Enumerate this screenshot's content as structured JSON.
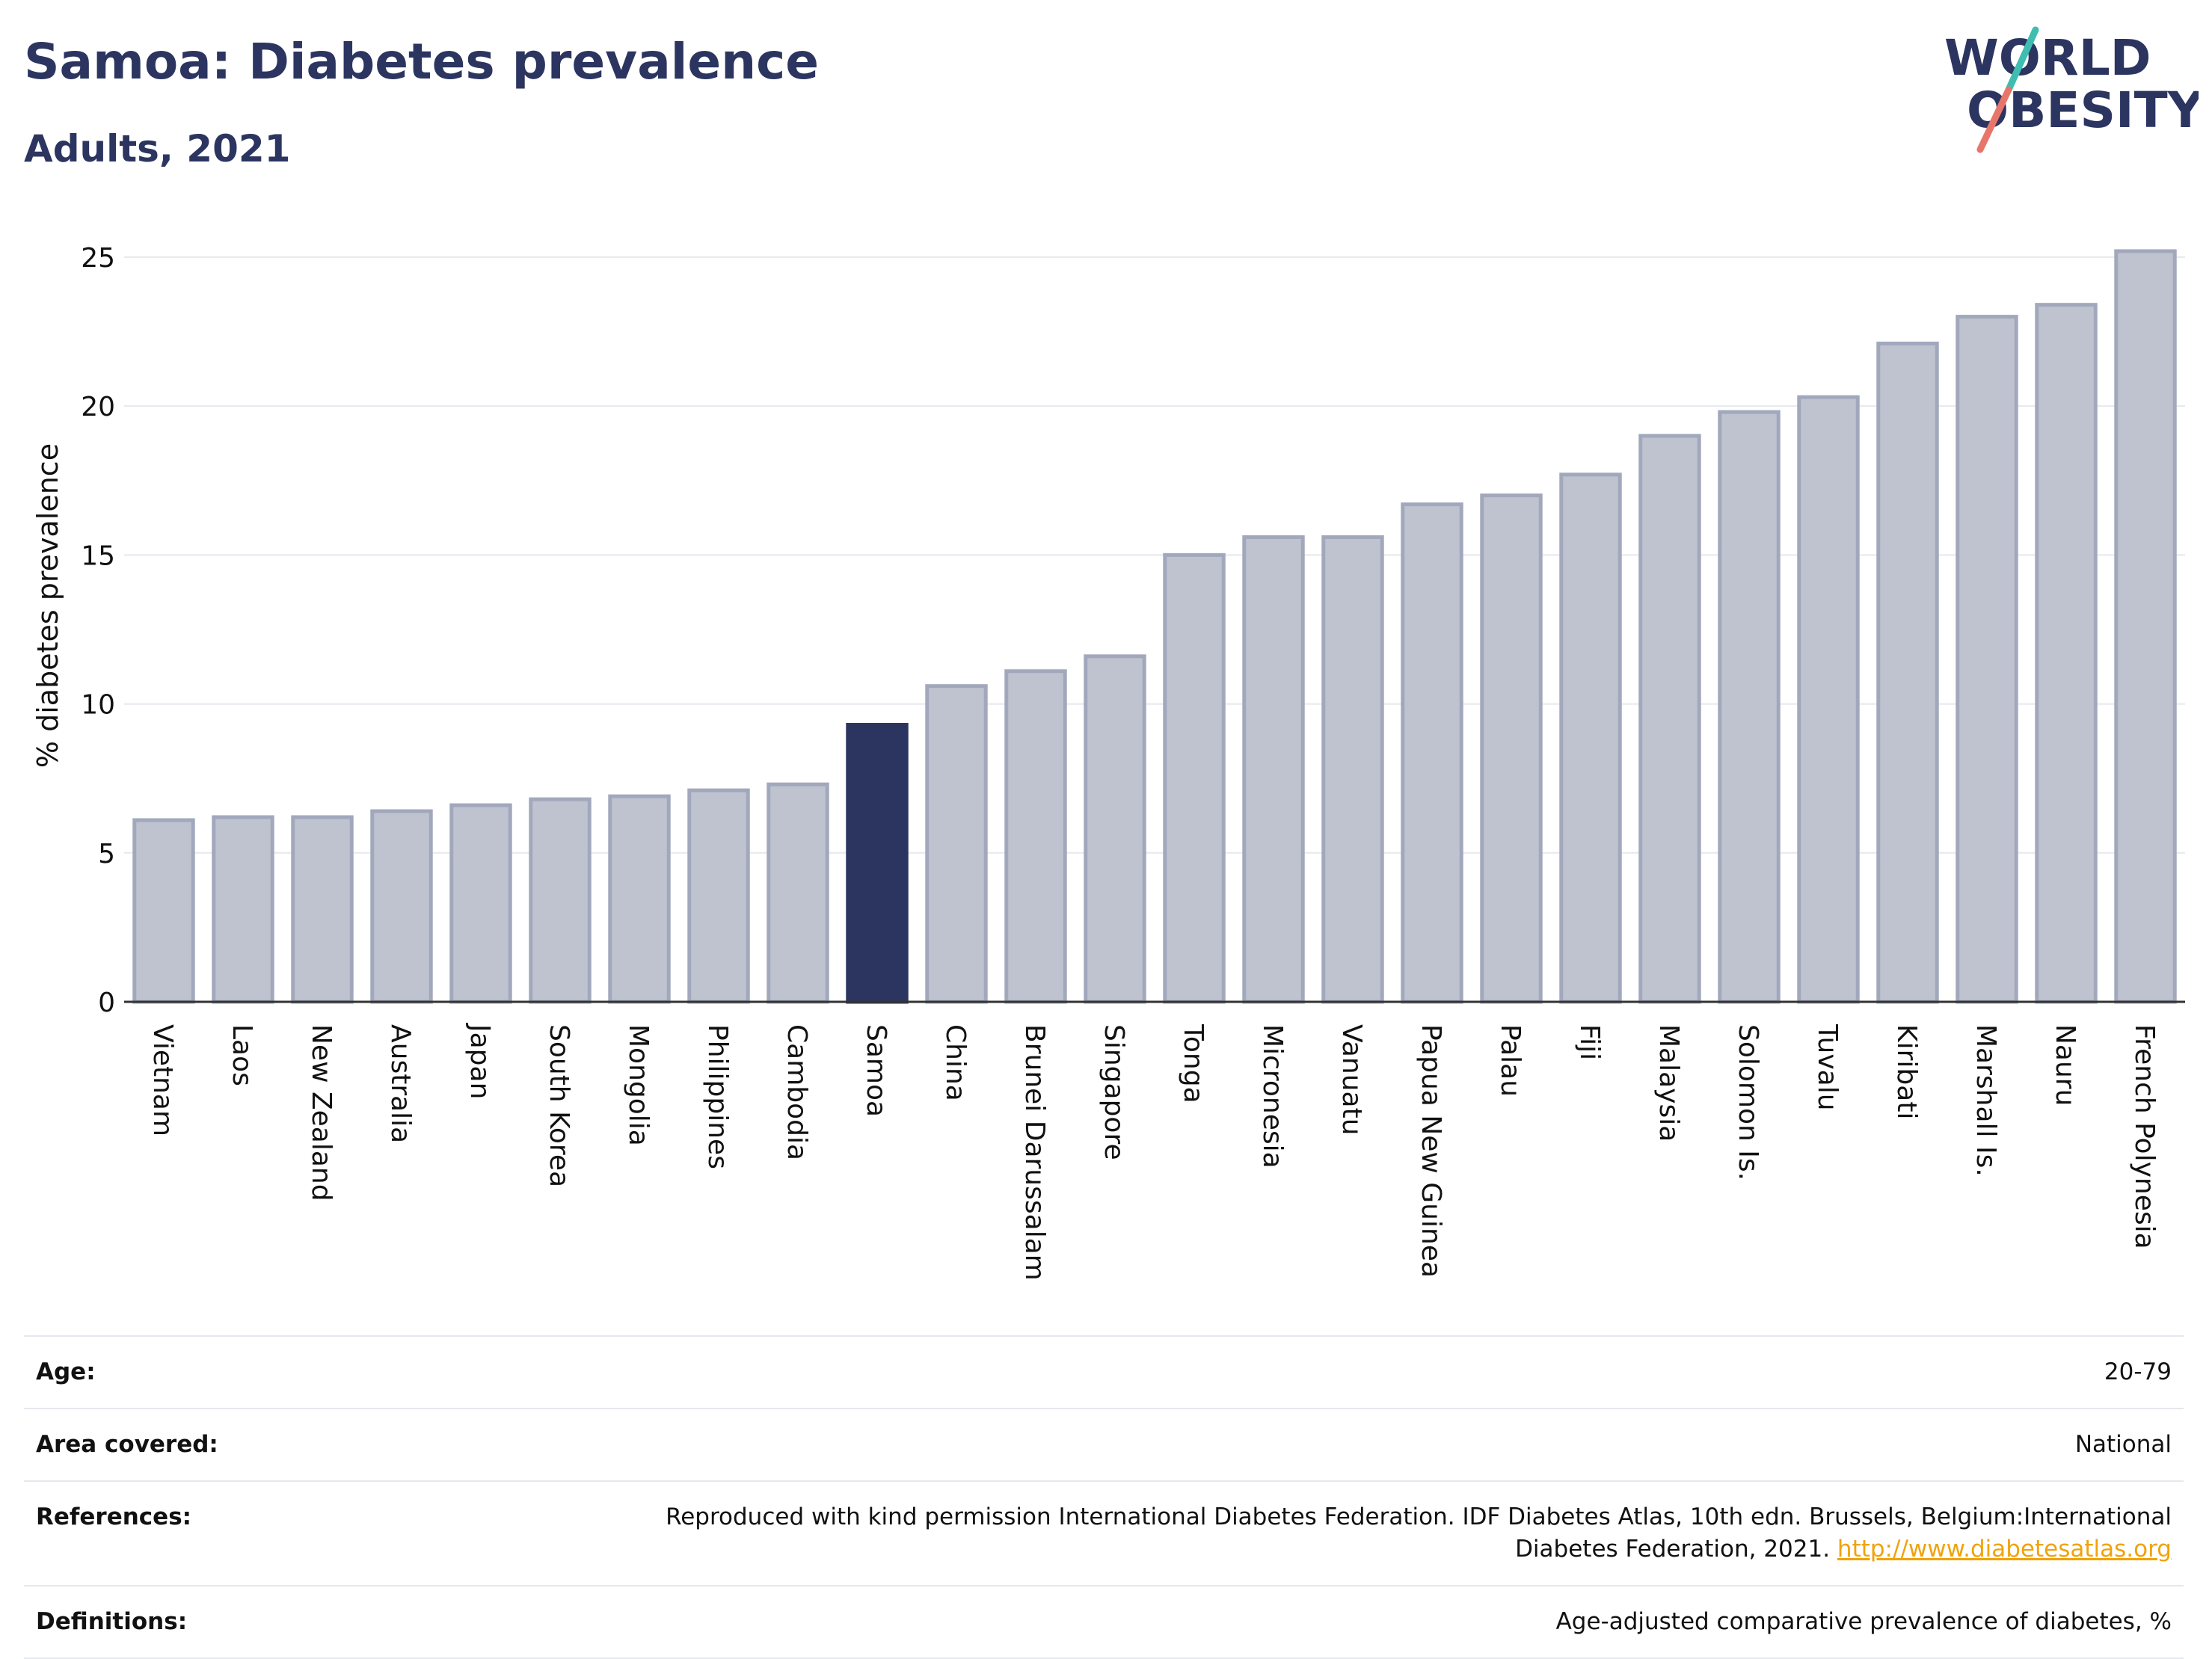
{
  "header": {
    "title": "Samoa: Diabetes prevalence",
    "subtitle": "Adults, 2021"
  },
  "logo": {
    "line1": "WORLD",
    "line2": "OBESITY"
  },
  "chart_data": {
    "type": "bar",
    "title": "Samoa: Diabetes prevalence",
    "subtitle": "Adults, 2021",
    "xlabel": "",
    "ylabel": "% diabetes prevalence",
    "ylim": [
      0,
      25
    ],
    "yticks": [
      0,
      5,
      10,
      15,
      20,
      25
    ],
    "grid": true,
    "highlight": "Samoa",
    "categories": [
      "Vietnam",
      "Laos",
      "New Zealand",
      "Australia",
      "Japan",
      "South Korea",
      "Mongolia",
      "Philippines",
      "Cambodia",
      "Samoa",
      "China",
      "Brunei Darussalam",
      "Singapore",
      "Tonga",
      "Micronesia",
      "Vanuatu",
      "Papua New Guinea",
      "Palau",
      "Fiji",
      "Malaysia",
      "Solomon Is.",
      "Tuvalu",
      "Kiribati",
      "Marshall Is.",
      "Nauru",
      "French Polynesia"
    ],
    "values": [
      6.1,
      6.2,
      6.2,
      6.4,
      6.6,
      6.8,
      6.9,
      7.1,
      7.3,
      9.3,
      10.6,
      11.1,
      11.6,
      15.0,
      15.6,
      15.6,
      16.7,
      17.0,
      17.7,
      19.0,
      19.8,
      20.3,
      22.1,
      23.0,
      23.4,
      25.2
    ]
  },
  "colors": {
    "title": "#2b3560",
    "bar": "#bfc3d0",
    "bar_border": "#a2a8bc",
    "bar_highlight": "#2b3560",
    "axis": "#333333",
    "grid": "#e6e8ef",
    "link": "#f0a30a",
    "logo_teal": "#3fbdb1",
    "logo_coral": "#e8756a"
  },
  "info": {
    "age_label": "Age:",
    "age_value": "20-79",
    "area_label": "Area covered:",
    "area_value": "National",
    "ref_label": "References:",
    "ref_text": "Reproduced with kind permission International Diabetes Federation.  IDF Diabetes Atlas, 10th edn. Brussels, Belgium:International Diabetes Federation, 2021.",
    "ref_link": "http://www.diabetesatlas.org",
    "def_label": "Definitions:",
    "def_value": "Age-adjusted comparative prevalence of diabetes, %"
  }
}
